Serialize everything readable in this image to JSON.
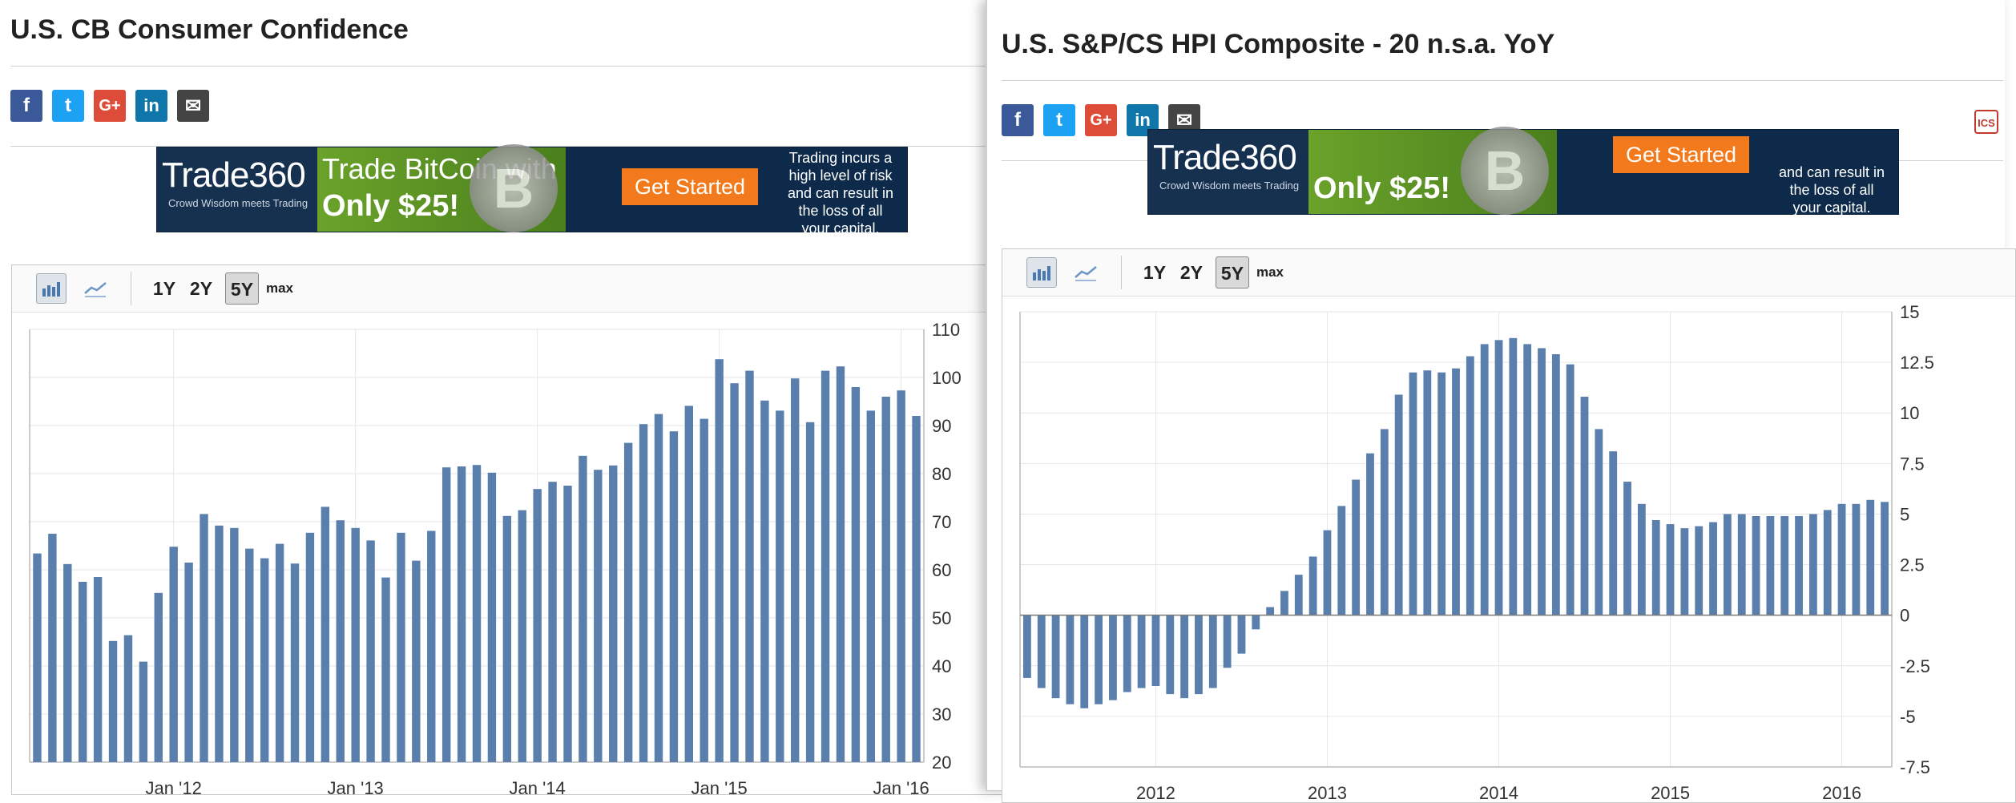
{
  "left": {
    "title": "U.S. CB Consumer Confidence",
    "social": [
      {
        "icon": "facebook-icon",
        "glyph": "f"
      },
      {
        "icon": "twitter-icon",
        "glyph": "t"
      },
      {
        "icon": "google-plus-icon",
        "glyph": "G+"
      },
      {
        "icon": "linkedin-icon",
        "glyph": "in"
      },
      {
        "icon": "email-icon",
        "glyph": "✉"
      }
    ],
    "banner": {
      "logo": "Trade360",
      "tagline": "Crowd Wisdom meets Trading",
      "headline1": "Trade BitCoin with",
      "headline2": "Only $25!",
      "cta": "Get Started",
      "risk": [
        "Trading incurs a",
        "high level of risk",
        "and can result in",
        "the loss of all",
        "your capital."
      ]
    },
    "toolbar": {
      "b1": "1Y",
      "b2": "2Y",
      "b3": "5Y",
      "b4": "max",
      "active": "5Y"
    }
  },
  "right": {
    "title": "U.S. S&P/CS HPI Composite - 20 n.s.a. YoY",
    "banner": {
      "logo": "Trade360",
      "tagline": "Crowd Wisdom meets Trading",
      "headline2": "Only $25!",
      "cta": "Get Started",
      "risk": [
        "and can result in",
        "the loss of all",
        "your capital."
      ]
    },
    "toolbar": {
      "b1": "1Y",
      "b2": "2Y",
      "b3": "5Y",
      "b4": "max",
      "active": "5Y"
    },
    "edge_icon": "ICS"
  },
  "colors": {
    "bar": "#5b7fad",
    "grid": "#e6e6e6",
    "axis": "#bbbbbb"
  },
  "chart_data": [
    {
      "type": "bar",
      "title": "U.S. CB Consumer Confidence",
      "ylim": [
        20,
        110
      ],
      "yticks": [
        20,
        30,
        40,
        50,
        60,
        70,
        80,
        90,
        100,
        110
      ],
      "xtick_labels": [
        {
          "label": "Jan '12",
          "index": 9
        },
        {
          "label": "Jan '13",
          "index": 21
        },
        {
          "label": "Jan '14",
          "index": 33
        },
        {
          "label": "Jan '15",
          "index": 45
        },
        {
          "label": "Jan '16",
          "index": 57
        }
      ],
      "values": [
        63.4,
        67.5,
        61.2,
        57.5,
        58.5,
        45.2,
        46.4,
        40.9,
        55.2,
        64.8,
        61.5,
        71.6,
        69.2,
        68.7,
        64.4,
        62.4,
        65.4,
        61.3,
        67.7,
        73.1,
        70.3,
        68.7,
        66.1,
        58.4,
        67.7,
        61.9,
        68.1,
        81.3,
        81.5,
        81.8,
        80.2,
        71.2,
        72.4,
        76.8,
        78.3,
        77.5,
        83.7,
        80.8,
        81.7,
        86.4,
        90.3,
        92.4,
        88.8,
        94.1,
        91.4,
        103.8,
        98.8,
        101.4,
        95.2,
        93.1,
        99.8,
        90.7,
        101.4,
        102.3,
        98.0,
        93.1,
        96.0,
        97.3,
        92.0
      ]
    },
    {
      "type": "bar",
      "title": "U.S. S&P/CS HPI Composite - 20 n.s.a. YoY",
      "ylim": [
        -7.5,
        15
      ],
      "yticks": [
        -7.5,
        -5,
        -2.5,
        0,
        2.5,
        5,
        7.5,
        10,
        12.5,
        15
      ],
      "xtick_labels": [
        {
          "label": "2012",
          "index": 9
        },
        {
          "label": "2013",
          "index": 21
        },
        {
          "label": "2014",
          "index": 33
        },
        {
          "label": "2015",
          "index": 45
        },
        {
          "label": "2016",
          "index": 57
        }
      ],
      "values": [
        -3.1,
        -3.6,
        -4.1,
        -4.4,
        -4.6,
        -4.4,
        -4.2,
        -3.8,
        -3.6,
        -3.5,
        -3.9,
        -4.1,
        -3.9,
        -3.6,
        -2.6,
        -1.9,
        -0.7,
        0.4,
        1.2,
        2.0,
        2.9,
        4.2,
        5.4,
        6.7,
        8.0,
        9.2,
        10.9,
        12.0,
        12.1,
        12.0,
        12.2,
        12.8,
        13.4,
        13.6,
        13.7,
        13.4,
        13.2,
        12.9,
        12.4,
        10.8,
        9.2,
        8.1,
        6.6,
        5.5,
        4.7,
        4.5,
        4.3,
        4.4,
        4.6,
        5.0,
        5.0,
        4.9,
        4.9,
        4.9,
        4.9,
        5.0,
        5.2,
        5.5,
        5.5,
        5.7,
        5.6
      ]
    }
  ]
}
